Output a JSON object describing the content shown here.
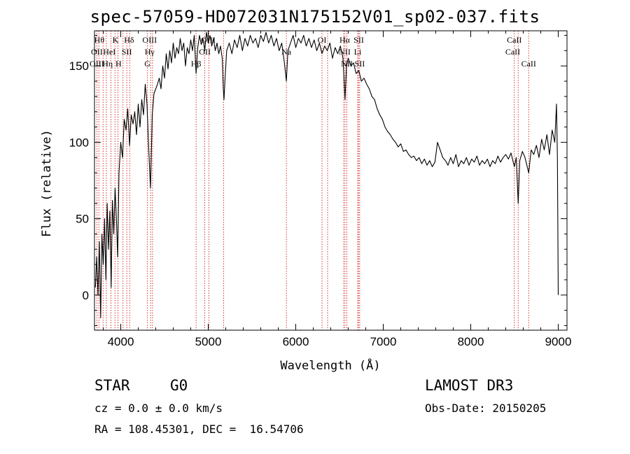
{
  "chart_data": {
    "type": "line",
    "title": "spec-57059-HD072031N175152V01_sp02-037.fits",
    "xlabel": "Wavelength (Å)",
    "ylabel": "Flux (relative)",
    "xlim": [
      3700,
      9100
    ],
    "ylim": [
      -23,
      173
    ],
    "xticks": [
      4000,
      5000,
      6000,
      7000,
      8000,
      9000
    ],
    "yticks": [
      0,
      50,
      100,
      150
    ],
    "grid": false,
    "line_color": "#000000",
    "marker_color": "#cc0000",
    "series": [
      {
        "points": [
          [
            3710,
            5
          ],
          [
            3725,
            25
          ],
          [
            3740,
            0
          ],
          [
            3755,
            35
          ],
          [
            3770,
            -15
          ],
          [
            3785,
            40
          ],
          [
            3800,
            20
          ],
          [
            3815,
            50
          ],
          [
            3830,
            10
          ],
          [
            3845,
            60
          ],
          [
            3860,
            30
          ],
          [
            3875,
            55
          ],
          [
            3890,
            5
          ],
          [
            3905,
            62
          ],
          [
            3920,
            40
          ],
          [
            3935,
            70
          ],
          [
            3950,
            50
          ],
          [
            3965,
            25
          ],
          [
            3980,
            80
          ],
          [
            4000,
            100
          ],
          [
            4020,
            90
          ],
          [
            4040,
            115
          ],
          [
            4060,
            108
          ],
          [
            4080,
            122
          ],
          [
            4101,
            98
          ],
          [
            4120,
            118
          ],
          [
            4140,
            112
          ],
          [
            4160,
            120
          ],
          [
            4180,
            105
          ],
          [
            4200,
            125
          ],
          [
            4220,
            110
          ],
          [
            4240,
            128
          ],
          [
            4260,
            118
          ],
          [
            4280,
            138
          ],
          [
            4300,
            125
          ],
          [
            4320,
            95
          ],
          [
            4340,
            70
          ],
          [
            4360,
            118
          ],
          [
            4380,
            132
          ],
          [
            4400,
            135
          ],
          [
            4420,
            138
          ],
          [
            4440,
            142
          ],
          [
            4460,
            135
          ],
          [
            4480,
            150
          ],
          [
            4500,
            142
          ],
          [
            4520,
            158
          ],
          [
            4540,
            148
          ],
          [
            4560,
            160
          ],
          [
            4580,
            152
          ],
          [
            4600,
            165
          ],
          [
            4620,
            155
          ],
          [
            4640,
            162
          ],
          [
            4660,
            158
          ],
          [
            4680,
            168
          ],
          [
            4700,
            160
          ],
          [
            4720,
            165
          ],
          [
            4740,
            150
          ],
          [
            4760,
            162
          ],
          [
            4780,
            158
          ],
          [
            4800,
            167
          ],
          [
            4820,
            160
          ],
          [
            4840,
            170
          ],
          [
            4861,
            145
          ],
          [
            4880,
            162
          ],
          [
            4900,
            170
          ],
          [
            4920,
            164
          ],
          [
            4940,
            168
          ],
          [
            4960,
            160
          ],
          [
            4980,
            172
          ],
          [
            5000,
            165
          ],
          [
            5020,
            170
          ],
          [
            5040,
            163
          ],
          [
            5060,
            168
          ],
          [
            5080,
            160
          ],
          [
            5100,
            165
          ],
          [
            5120,
            158
          ],
          [
            5140,
            163
          ],
          [
            5160,
            155
          ],
          [
            5172,
            135
          ],
          [
            5180,
            128
          ],
          [
            5190,
            140
          ],
          [
            5210,
            160
          ],
          [
            5240,
            165
          ],
          [
            5270,
            158
          ],
          [
            5300,
            167
          ],
          [
            5330,
            162
          ],
          [
            5360,
            170
          ],
          [
            5390,
            160
          ],
          [
            5420,
            168
          ],
          [
            5450,
            163
          ],
          [
            5480,
            170
          ],
          [
            5510,
            165
          ],
          [
            5540,
            168
          ],
          [
            5570,
            162
          ],
          [
            5600,
            170
          ],
          [
            5630,
            166
          ],
          [
            5660,
            172
          ],
          [
            5690,
            165
          ],
          [
            5720,
            170
          ],
          [
            5750,
            163
          ],
          [
            5780,
            168
          ],
          [
            5810,
            160
          ],
          [
            5840,
            165
          ],
          [
            5870,
            152
          ],
          [
            5893,
            140
          ],
          [
            5910,
            160
          ],
          [
            5940,
            165
          ],
          [
            5970,
            170
          ],
          [
            6000,
            162
          ],
          [
            6030,
            168
          ],
          [
            6060,
            165
          ],
          [
            6090,
            170
          ],
          [
            6120,
            163
          ],
          [
            6150,
            168
          ],
          [
            6180,
            162
          ],
          [
            6210,
            167
          ],
          [
            6240,
            160
          ],
          [
            6270,
            165
          ],
          [
            6300,
            158
          ],
          [
            6330,
            163
          ],
          [
            6360,
            160
          ],
          [
            6390,
            165
          ],
          [
            6420,
            155
          ],
          [
            6450,
            162
          ],
          [
            6480,
            158
          ],
          [
            6510,
            163
          ],
          [
            6540,
            155
          ],
          [
            6563,
            128
          ],
          [
            6580,
            150
          ],
          [
            6600,
            155
          ],
          [
            6630,
            150
          ],
          [
            6660,
            152
          ],
          [
            6690,
            145
          ],
          [
            6720,
            147
          ],
          [
            6750,
            140
          ],
          [
            6780,
            142
          ],
          [
            6810,
            138
          ],
          [
            6840,
            135
          ],
          [
            6870,
            130
          ],
          [
            6900,
            128
          ],
          [
            6930,
            122
          ],
          [
            6960,
            118
          ],
          [
            6990,
            115
          ],
          [
            7020,
            110
          ],
          [
            7050,
            107
          ],
          [
            7080,
            105
          ],
          [
            7110,
            102
          ],
          [
            7140,
            100
          ],
          [
            7170,
            97
          ],
          [
            7200,
            99
          ],
          [
            7230,
            94
          ],
          [
            7260,
            95
          ],
          [
            7290,
            92
          ],
          [
            7320,
            90
          ],
          [
            7350,
            91
          ],
          [
            7380,
            88
          ],
          [
            7410,
            90
          ],
          [
            7440,
            86
          ],
          [
            7470,
            89
          ],
          [
            7500,
            85
          ],
          [
            7530,
            88
          ],
          [
            7560,
            84
          ],
          [
            7590,
            87
          ],
          [
            7620,
            100
          ],
          [
            7650,
            95
          ],
          [
            7680,
            90
          ],
          [
            7710,
            88
          ],
          [
            7740,
            85
          ],
          [
            7770,
            90
          ],
          [
            7800,
            86
          ],
          [
            7830,
            92
          ],
          [
            7860,
            84
          ],
          [
            7890,
            88
          ],
          [
            7920,
            86
          ],
          [
            7950,
            90
          ],
          [
            7980,
            85
          ],
          [
            8010,
            89
          ],
          [
            8040,
            87
          ],
          [
            8070,
            91
          ],
          [
            8100,
            85
          ],
          [
            8130,
            88
          ],
          [
            8160,
            86
          ],
          [
            8190,
            89
          ],
          [
            8220,
            84
          ],
          [
            8250,
            88
          ],
          [
            8280,
            86
          ],
          [
            8310,
            91
          ],
          [
            8340,
            87
          ],
          [
            8370,
            90
          ],
          [
            8400,
            92
          ],
          [
            8430,
            89
          ],
          [
            8460,
            93
          ],
          [
            8498,
            84
          ],
          [
            8520,
            90
          ],
          [
            8542,
            60
          ],
          [
            8560,
            88
          ],
          [
            8590,
            94
          ],
          [
            8620,
            90
          ],
          [
            8662,
            80
          ],
          [
            8690,
            95
          ],
          [
            8720,
            92
          ],
          [
            8750,
            98
          ],
          [
            8780,
            90
          ],
          [
            8810,
            102
          ],
          [
            8840,
            95
          ],
          [
            8870,
            105
          ],
          [
            8900,
            92
          ],
          [
            8930,
            108
          ],
          [
            8960,
            100
          ],
          [
            8980,
            125
          ],
          [
            8990,
            90
          ],
          [
            9000,
            0
          ]
        ]
      }
    ],
    "lines": [
      {
        "wavelength": 3727,
        "labels": []
      },
      {
        "wavelength": 3750,
        "labels": []
      },
      {
        "wavelength": 3798,
        "labels": []
      },
      {
        "wavelength": 3835,
        "labels": []
      },
      {
        "wavelength": 3889,
        "labels": []
      },
      {
        "wavelength": 3934,
        "labels": []
      },
      {
        "wavelength": 3969,
        "labels": []
      },
      {
        "wavelength": 4026,
        "labels": []
      },
      {
        "wavelength": 4069,
        "labels": []
      },
      {
        "wavelength": 4102,
        "labels": []
      },
      {
        "wavelength": 4305,
        "labels": []
      },
      {
        "wavelength": 4341,
        "labels": []
      },
      {
        "wavelength": 4363,
        "labels": []
      },
      {
        "wavelength": 4861,
        "labels": []
      },
      {
        "wavelength": 4959,
        "labels": []
      },
      {
        "wavelength": 5007,
        "labels": []
      },
      {
        "wavelength": 5175,
        "labels": []
      },
      {
        "wavelength": 5893,
        "labels": []
      },
      {
        "wavelength": 6300,
        "labels": []
      },
      {
        "wavelength": 6364,
        "labels": []
      },
      {
        "wavelength": 6548,
        "labels": []
      },
      {
        "wavelength": 6563,
        "labels": []
      },
      {
        "wavelength": 6584,
        "labels": []
      },
      {
        "wavelength": 6708,
        "labels": []
      },
      {
        "wavelength": 6717,
        "labels": []
      },
      {
        "wavelength": 6731,
        "labels": []
      },
      {
        "wavelength": 8498,
        "labels": []
      },
      {
        "wavelength": 8542,
        "labels": []
      },
      {
        "wavelength": 8662,
        "labels": []
      }
    ],
    "line_labels": [
      {
        "text": "Hθ",
        "wavelength": 3755,
        "row": 0
      },
      {
        "text": "K",
        "wavelength": 3940,
        "row": 0
      },
      {
        "text": "Hδ",
        "wavelength": 4095,
        "row": 0
      },
      {
        "text": "OIII",
        "wavelength": 4330,
        "row": 0
      },
      {
        "text": "OIII",
        "wavelength": 5000,
        "row": 0
      },
      {
        "text": "OI",
        "wavelength": 6300,
        "row": 0
      },
      {
        "text": "Hα",
        "wavelength": 6560,
        "row": 0
      },
      {
        "text": "SII",
        "wavelength": 6720,
        "row": 0
      },
      {
        "text": "CaII",
        "wavelength": 8498,
        "row": 0
      },
      {
        "text": "OII",
        "wavelength": 3727,
        "row": 1
      },
      {
        "text": "HeI",
        "wavelength": 3870,
        "row": 1
      },
      {
        "text": "SII",
        "wavelength": 4069,
        "row": 1
      },
      {
        "text": "Hγ",
        "wavelength": 4330,
        "row": 1
      },
      {
        "text": "OII",
        "wavelength": 4961,
        "row": 1
      },
      {
        "text": "Na",
        "wavelength": 5893,
        "row": 1
      },
      {
        "text": "NII",
        "wavelength": 6560,
        "row": 1
      },
      {
        "text": "Li",
        "wavelength": 6708,
        "row": 1
      },
      {
        "text": "CaII",
        "wavelength": 8480,
        "row": 1
      },
      {
        "text": "OIII",
        "wavelength": 3727,
        "row": 2
      },
      {
        "text": "Hη",
        "wavelength": 3850,
        "row": 2
      },
      {
        "text": "H",
        "wavelength": 3975,
        "row": 2
      },
      {
        "text": "G",
        "wavelength": 4305,
        "row": 2
      },
      {
        "text": "Hβ",
        "wavelength": 4861,
        "row": 2
      },
      {
        "text": "NII",
        "wavelength": 6584,
        "row": 2
      },
      {
        "text": "SII",
        "wavelength": 6731,
        "row": 2
      },
      {
        "text": "CaII",
        "wavelength": 8662,
        "row": 2
      }
    ]
  },
  "info": {
    "object_class": "STAR",
    "subclass": "G0",
    "survey": "LAMOST DR3",
    "cz": "cz = 0.0 ± 0.0 km/s",
    "obs_date": "Obs-Date: 20150205",
    "radec": "RA = 108.45301, DEC =  16.54706"
  }
}
